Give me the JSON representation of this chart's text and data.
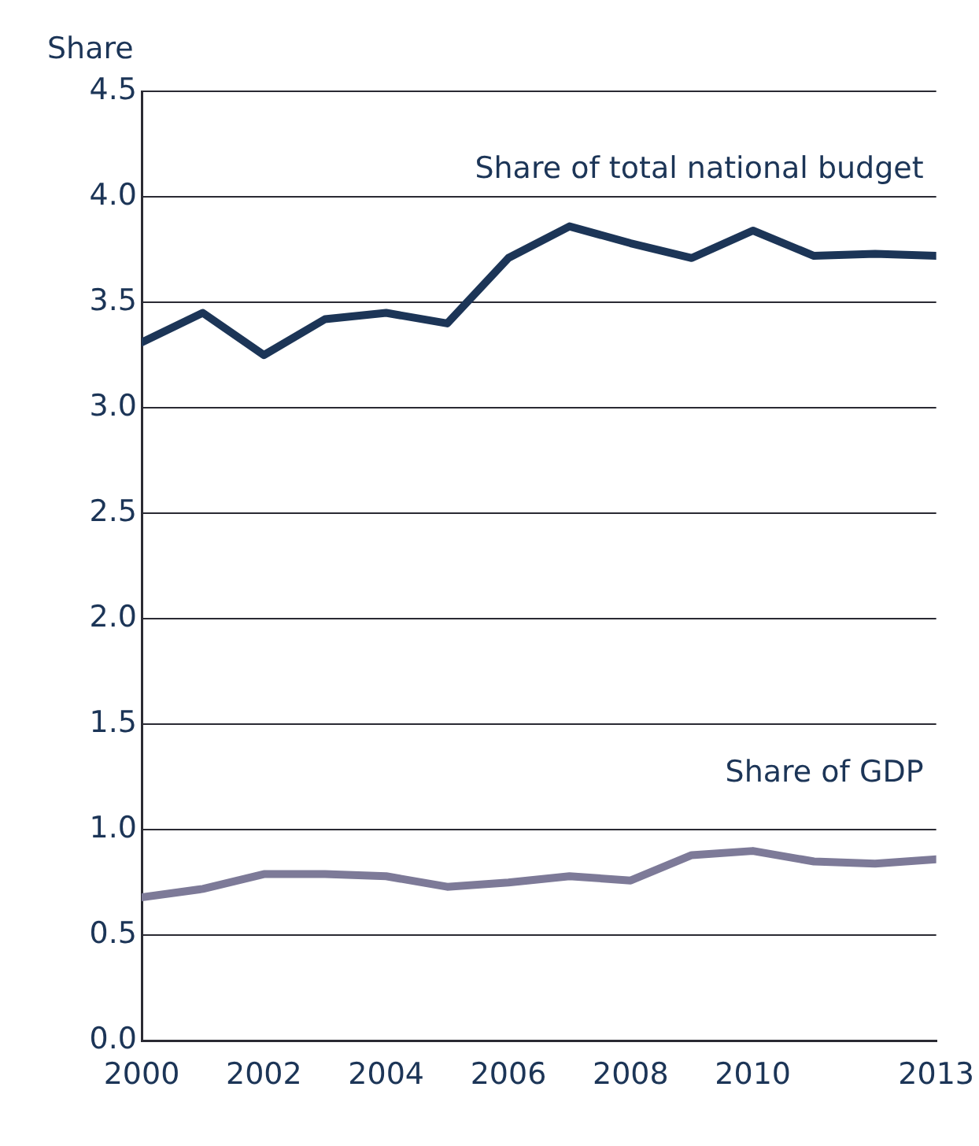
{
  "chart_data": {
    "type": "line",
    "ylabel": "Share",
    "x": [
      2000,
      2001,
      2002,
      2003,
      2004,
      2005,
      2006,
      2007,
      2008,
      2009,
      2010,
      2011,
      2012,
      2013
    ],
    "series": [
      {
        "name": "Share of total national budget",
        "color": "#1c3557",
        "values": [
          3.31,
          3.45,
          3.25,
          3.42,
          3.45,
          3.4,
          3.71,
          3.86,
          3.78,
          3.71,
          3.84,
          3.72,
          3.73,
          3.72
        ]
      },
      {
        "name": "Share of GDP",
        "color": "#7d7a98",
        "values": [
          0.68,
          0.72,
          0.79,
          0.79,
          0.78,
          0.73,
          0.75,
          0.78,
          0.76,
          0.88,
          0.9,
          0.85,
          0.84,
          0.86
        ]
      }
    ],
    "xlim": [
      2000,
      2013
    ],
    "xticks": [
      2000,
      2002,
      2004,
      2006,
      2008,
      2010,
      2013
    ],
    "ylim": [
      0,
      4.5
    ],
    "yticks": [
      {
        "value": 0,
        "label": "0.0"
      },
      0.5,
      {
        "value": 1,
        "label": "1.0"
      },
      1.5,
      {
        "value": 2,
        "label": "2.0"
      },
      2.5,
      {
        "value": 3,
        "label": "3.0"
      },
      3.5,
      {
        "value": 4,
        "label": "4.0"
      },
      4.5
    ],
    "grid": "y",
    "legend": false,
    "marker": "none",
    "line_style": "solid"
  }
}
